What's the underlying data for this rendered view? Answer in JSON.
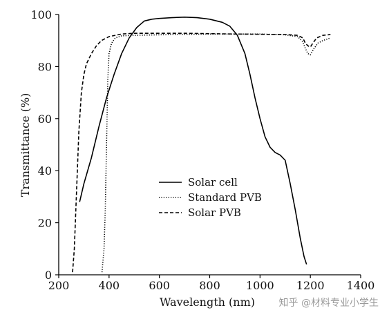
{
  "chart_data": {
    "type": "line",
    "xlabel": "Wavelength (nm)",
    "ylabel": "Transmittance (%)",
    "xlim": [
      200,
      1400
    ],
    "ylim": [
      0,
      100
    ],
    "xticks": [
      200,
      400,
      600,
      800,
      1000,
      1200,
      1400
    ],
    "yticks": [
      0,
      20,
      40,
      60,
      80,
      100
    ],
    "grid": false,
    "legend_position": "center",
    "series": [
      {
        "name": "Solar cell",
        "style": "solid",
        "color": "#000000",
        "points": [
          [
            283,
            28
          ],
          [
            300,
            35
          ],
          [
            330,
            45
          ],
          [
            360,
            57
          ],
          [
            390,
            68
          ],
          [
            420,
            77
          ],
          [
            450,
            85
          ],
          [
            480,
            91
          ],
          [
            510,
            95
          ],
          [
            540,
            97.5
          ],
          [
            570,
            98.2
          ],
          [
            600,
            98.5
          ],
          [
            650,
            98.8
          ],
          [
            700,
            99
          ],
          [
            750,
            98.8
          ],
          [
            800,
            98.2
          ],
          [
            850,
            97
          ],
          [
            880,
            95.5
          ],
          [
            910,
            92
          ],
          [
            940,
            85
          ],
          [
            960,
            77
          ],
          [
            980,
            68
          ],
          [
            1000,
            60
          ],
          [
            1020,
            53
          ],
          [
            1040,
            49
          ],
          [
            1060,
            47
          ],
          [
            1080,
            46
          ],
          [
            1100,
            44
          ],
          [
            1120,
            35
          ],
          [
            1140,
            25
          ],
          [
            1160,
            14
          ],
          [
            1175,
            7
          ],
          [
            1185,
            4
          ]
        ]
      },
      {
        "name": "Standard PVB",
        "style": "dotted",
        "color": "#000000",
        "points": [
          [
            372,
            1
          ],
          [
            380,
            10
          ],
          [
            385,
            25
          ],
          [
            390,
            50
          ],
          [
            395,
            75
          ],
          [
            400,
            85
          ],
          [
            410,
            89
          ],
          [
            425,
            91
          ],
          [
            450,
            91.8
          ],
          [
            500,
            92
          ],
          [
            600,
            92.2
          ],
          [
            800,
            92.5
          ],
          [
            1000,
            92.5
          ],
          [
            1100,
            92.2
          ],
          [
            1150,
            91.5
          ],
          [
            1170,
            89.5
          ],
          [
            1180,
            87
          ],
          [
            1190,
            85
          ],
          [
            1200,
            84.5
          ],
          [
            1215,
            87
          ],
          [
            1230,
            89
          ],
          [
            1250,
            90
          ],
          [
            1280,
            91
          ]
        ]
      },
      {
        "name": "Solar PVB",
        "style": "dashed",
        "color": "#000000",
        "points": [
          [
            255,
            1
          ],
          [
            262,
            10
          ],
          [
            270,
            30
          ],
          [
            280,
            55
          ],
          [
            290,
            70
          ],
          [
            300,
            77
          ],
          [
            310,
            81
          ],
          [
            330,
            85
          ],
          [
            350,
            88
          ],
          [
            370,
            90
          ],
          [
            400,
            91.5
          ],
          [
            450,
            92.5
          ],
          [
            500,
            92.8
          ],
          [
            700,
            92.8
          ],
          [
            900,
            92.5
          ],
          [
            1100,
            92.3
          ],
          [
            1150,
            92
          ],
          [
            1170,
            91
          ],
          [
            1180,
            89
          ],
          [
            1190,
            88
          ],
          [
            1200,
            87.5
          ],
          [
            1210,
            89
          ],
          [
            1225,
            91
          ],
          [
            1250,
            92
          ],
          [
            1280,
            92.3
          ]
        ]
      }
    ]
  },
  "watermark": "知乎 @材料专业小学生"
}
